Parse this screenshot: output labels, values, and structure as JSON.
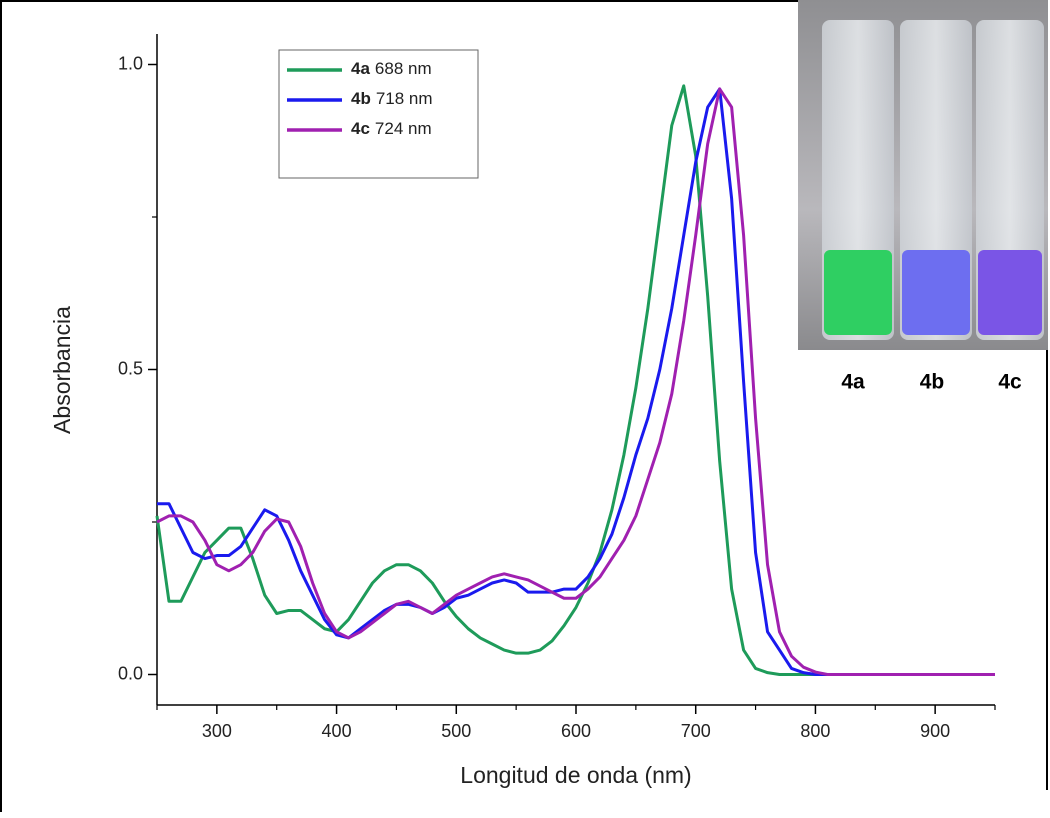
{
  "chart_data": {
    "type": "line",
    "x_label": "Longitud de onda (nm)",
    "y_label": "Absorbancia",
    "x": [
      250,
      260,
      270,
      280,
      290,
      300,
      310,
      320,
      330,
      340,
      350,
      360,
      370,
      380,
      390,
      400,
      410,
      420,
      430,
      440,
      450,
      460,
      470,
      480,
      490,
      500,
      510,
      520,
      530,
      540,
      550,
      560,
      570,
      580,
      590,
      600,
      610,
      620,
      630,
      640,
      650,
      660,
      670,
      680,
      690,
      700,
      710,
      720,
      730,
      740,
      750,
      760,
      770,
      780,
      790,
      800,
      810,
      820,
      830,
      840,
      850,
      860,
      870,
      880,
      890,
      900,
      910,
      920,
      930,
      940,
      950
    ],
    "series": [
      {
        "name": "4a",
        "label": "688 nm",
        "color": "#1e9b5a",
        "values": [
          0.26,
          0.12,
          0.12,
          0.16,
          0.2,
          0.22,
          0.24,
          0.24,
          0.19,
          0.13,
          0.1,
          0.105,
          0.105,
          0.09,
          0.075,
          0.07,
          0.09,
          0.12,
          0.15,
          0.17,
          0.18,
          0.18,
          0.17,
          0.15,
          0.12,
          0.095,
          0.075,
          0.06,
          0.05,
          0.04,
          0.035,
          0.035,
          0.04,
          0.055,
          0.08,
          0.11,
          0.15,
          0.2,
          0.27,
          0.36,
          0.47,
          0.6,
          0.75,
          0.9,
          0.965,
          0.85,
          0.62,
          0.35,
          0.14,
          0.04,
          0.01,
          0.003,
          0,
          0,
          0,
          0,
          0,
          0,
          0,
          0,
          0,
          0,
          0,
          0,
          0,
          0,
          0,
          0,
          0,
          0,
          0
        ]
      },
      {
        "name": "4b",
        "label": "718 nm",
        "color": "#1a1aee",
        "values": [
          0.28,
          0.28,
          0.24,
          0.2,
          0.19,
          0.195,
          0.195,
          0.21,
          0.24,
          0.27,
          0.26,
          0.22,
          0.17,
          0.13,
          0.09,
          0.065,
          0.06,
          0.075,
          0.09,
          0.105,
          0.115,
          0.115,
          0.11,
          0.1,
          0.11,
          0.125,
          0.13,
          0.14,
          0.15,
          0.155,
          0.15,
          0.135,
          0.135,
          0.135,
          0.14,
          0.14,
          0.16,
          0.19,
          0.23,
          0.29,
          0.36,
          0.42,
          0.5,
          0.6,
          0.72,
          0.84,
          0.93,
          0.96,
          0.78,
          0.48,
          0.2,
          0.07,
          0.04,
          0.01,
          0.003,
          0,
          0,
          0,
          0,
          0,
          0,
          0,
          0,
          0,
          0,
          0,
          0,
          0,
          0,
          0,
          0
        ]
      },
      {
        "name": "4c",
        "label": "724 nm",
        "color": "#a020b0",
        "values": [
          0.25,
          0.26,
          0.26,
          0.25,
          0.22,
          0.18,
          0.17,
          0.18,
          0.2,
          0.235,
          0.255,
          0.25,
          0.21,
          0.15,
          0.1,
          0.07,
          0.06,
          0.07,
          0.085,
          0.1,
          0.115,
          0.12,
          0.11,
          0.1,
          0.115,
          0.13,
          0.14,
          0.15,
          0.16,
          0.165,
          0.16,
          0.155,
          0.145,
          0.135,
          0.125,
          0.125,
          0.14,
          0.16,
          0.19,
          0.22,
          0.26,
          0.32,
          0.38,
          0.46,
          0.58,
          0.72,
          0.87,
          0.96,
          0.93,
          0.72,
          0.42,
          0.18,
          0.07,
          0.03,
          0.012,
          0.004,
          0,
          0,
          0,
          0,
          0,
          0,
          0,
          0,
          0,
          0,
          0,
          0,
          0,
          0,
          0
        ]
      }
    ],
    "xlim": [
      250,
      950
    ],
    "ylim": [
      -0.05,
      1.05
    ],
    "xticks": [
      300,
      400,
      500,
      600,
      700,
      800,
      900
    ],
    "xticks_minor": [
      250,
      350,
      450,
      550,
      650,
      750,
      850,
      950
    ],
    "yticks": [
      {
        "value": 0,
        "label": "0.0"
      },
      {
        "value": 0.5,
        "label": "0.5"
      },
      {
        "value": 1,
        "label": "1.0"
      }
    ],
    "yticks_minor": [
      0.25,
      0.75
    ],
    "legend": "upper-left"
  },
  "inset_labels": [
    "4a",
    "4b",
    "4c"
  ]
}
